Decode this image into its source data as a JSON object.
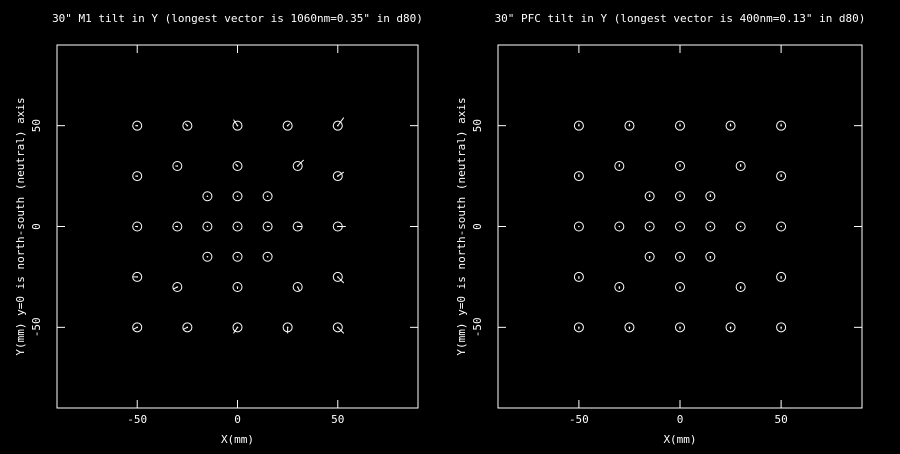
{
  "chart_data": [
    {
      "type": "scatter",
      "title": "30\" M1 tilt in Y (longest vector is 1060nm=0.35\" in d80)",
      "xlabel": "X(mm)",
      "ylabel": "Y(mm) y=0 is north-south (neutral) axis",
      "x": [
        -50,
        -25,
        0,
        25,
        50,
        -50,
        -30,
        0,
        30,
        50,
        -15,
        0,
        15,
        -50,
        -30,
        -15,
        0,
        15,
        30,
        50,
        -15,
        0,
        15,
        -50,
        -30,
        0,
        30,
        50,
        -50,
        -25,
        0,
        25,
        50
      ],
      "y": [
        50,
        50,
        50,
        50,
        50,
        25,
        30,
        30,
        30,
        25,
        15,
        15,
        15,
        0,
        0,
        0,
        0,
        0,
        0,
        0,
        -15,
        -15,
        -15,
        -25,
        -30,
        -30,
        -30,
        -25,
        -50,
        -50,
        -50,
        -50,
        -50
      ],
      "vector_dx": [
        -1,
        -1,
        -2,
        1,
        3,
        -1,
        -1,
        -1,
        3,
        3,
        0,
        0,
        0,
        -1,
        -1,
        0,
        0,
        1,
        2,
        4,
        0,
        0,
        0,
        -2,
        -2,
        0,
        1,
        3,
        -2,
        -2,
        -2,
        0,
        3
      ],
      "vector_dy": [
        0,
        1,
        3,
        1,
        4,
        0,
        0,
        1,
        3,
        2,
        0,
        0,
        0,
        0,
        0,
        0,
        0,
        0,
        0,
        0,
        0,
        0,
        0,
        0,
        -1,
        -1,
        -2,
        -3,
        -1,
        -1,
        -3,
        -3,
        -3
      ],
      "xlim": [
        -90,
        90
      ],
      "ylim": [
        -90,
        90
      ],
      "xticks": [
        -50,
        0,
        50
      ],
      "yticks": [
        -50,
        0,
        50
      ],
      "color": "#ffffff"
    },
    {
      "type": "scatter",
      "title": "30\" PFC tilt in Y (longest vector is 400nm=0.13\" in d80)",
      "xlabel": "X(mm)",
      "ylabel": "Y(mm) y=0 is north-south (neutral) axis",
      "x": [
        -50,
        -25,
        0,
        25,
        50,
        -50,
        -30,
        0,
        30,
        50,
        -15,
        0,
        15,
        -50,
        -30,
        -15,
        0,
        15,
        30,
        50,
        -15,
        0,
        15,
        -50,
        -30,
        0,
        30,
        50,
        -50,
        -25,
        0,
        25,
        50
      ],
      "y": [
        50,
        50,
        50,
        50,
        50,
        25,
        30,
        30,
        30,
        25,
        15,
        15,
        15,
        0,
        0,
        0,
        0,
        0,
        0,
        0,
        -15,
        -15,
        -15,
        -25,
        -30,
        -30,
        -30,
        -25,
        -50,
        -50,
        -50,
        -50,
        -50
      ],
      "vector_dx": [
        0,
        0,
        0,
        0,
        0,
        0,
        0,
        0,
        0,
        0,
        0,
        0,
        0,
        0,
        0,
        0,
        0,
        0,
        0,
        0,
        0,
        0,
        0,
        0,
        0,
        0,
        0,
        0,
        0,
        0,
        0,
        0,
        0
      ],
      "vector_dy": [
        1,
        1,
        1,
        1,
        1,
        1,
        1,
        1,
        1,
        1,
        1,
        1,
        1,
        0,
        0,
        0,
        0,
        0,
        0,
        0,
        -1,
        -1,
        -1,
        -1,
        -1,
        -1,
        -1,
        -1,
        -1,
        -1,
        -1,
        -1,
        -1
      ],
      "xlim": [
        -90,
        90
      ],
      "ylim": [
        -90,
        90
      ],
      "xticks": [
        -50,
        0,
        50
      ],
      "yticks": [
        -50,
        0,
        50
      ],
      "color": "#ffffff"
    }
  ]
}
